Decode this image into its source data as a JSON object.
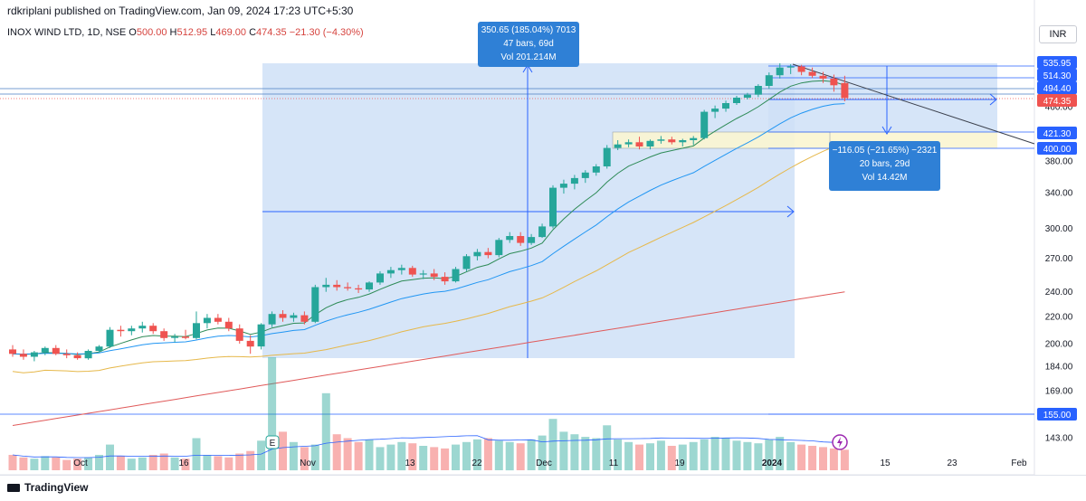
{
  "header": {
    "publisher": "rdkriplani published on TradingView.com, Jan 09, 2024 17:23 UTC+5:30"
  },
  "symbol": {
    "name": "INOX WIND LTD, 1D, NSE",
    "o_label": "O",
    "o": "500.00",
    "h_label": "H",
    "h": "512.95",
    "l_label": "L",
    "l": "469.00",
    "c_label": "C",
    "c": "474.35",
    "change": "−21.30 (−4.30%)"
  },
  "currency": "INR",
  "footer": {
    "brand": "TradingView"
  },
  "measure_up": {
    "line1": "350.65 (185.04%) 7013",
    "line2": "47 bars, 69d",
    "line3": "Vol 201.214M"
  },
  "measure_down": {
    "line1": "−116.05 (−21.65%) −2321",
    "line2": "20 bars, 29d",
    "line3": "Vol 14.42M"
  },
  "colors": {
    "up": "#26a69a",
    "down": "#ef5350",
    "accent": "#2962ff",
    "ema_fast": "#2e8b57",
    "ema_mid": "#2196f3",
    "ema_slow": "#e6b84a",
    "sma_long": "#e05a5a",
    "badge_blue": "#2962ff",
    "badge_red": "#ef5350"
  },
  "chart_data": {
    "type": "candlestick",
    "title": "INOX WIND LTD, 1D, NSE",
    "x_ticks": [
      "Oct",
      "16",
      "Nov",
      "13",
      "22",
      "Dec",
      "11",
      "19",
      "2024",
      "15",
      "23",
      "Feb"
    ],
    "y_ticks": [
      143,
      155,
      169,
      184,
      200,
      220,
      240,
      270,
      300,
      340,
      380,
      400,
      460
    ],
    "y_scale": "log",
    "y_range": [
      131,
      600
    ],
    "price_labels": [
      {
        "text": "535.95",
        "style": "blue"
      },
      {
        "text": "514.30",
        "style": "blue"
      },
      {
        "text": "494.40",
        "style": "blue"
      },
      {
        "text": "474.35",
        "style": "red"
      },
      {
        "text": "421.30",
        "style": "blue"
      },
      {
        "text": "400.00",
        "style": "blue"
      },
      {
        "text": "155.00",
        "style": "blue"
      }
    ],
    "candles": [
      {
        "d": "2023-09-25",
        "o": 196,
        "h": 199,
        "l": 191,
        "c": 193
      },
      {
        "d": "2023-09-26",
        "o": 193,
        "h": 196,
        "l": 189,
        "c": 191
      },
      {
        "d": "2023-09-27",
        "o": 191,
        "h": 195,
        "l": 188,
        "c": 194
      },
      {
        "d": "2023-09-28",
        "o": 194,
        "h": 198,
        "l": 192,
        "c": 197
      },
      {
        "d": "2023-09-29",
        "o": 197,
        "h": 199,
        "l": 192,
        "c": 193
      },
      {
        "d": "2023-10-03",
        "o": 193,
        "h": 196,
        "l": 190,
        "c": 192
      },
      {
        "d": "2023-10-04",
        "o": 192,
        "h": 194,
        "l": 189,
        "c": 190
      },
      {
        "d": "2023-10-05",
        "o": 190,
        "h": 196,
        "l": 189,
        "c": 195
      },
      {
        "d": "2023-10-06",
        "o": 195,
        "h": 199,
        "l": 194,
        "c": 198
      },
      {
        "d": "2023-10-09",
        "o": 198,
        "h": 212,
        "l": 197,
        "c": 210
      },
      {
        "d": "2023-10-10",
        "o": 210,
        "h": 213,
        "l": 205,
        "c": 209
      },
      {
        "d": "2023-10-11",
        "o": 209,
        "h": 213,
        "l": 206,
        "c": 211
      },
      {
        "d": "2023-10-12",
        "o": 211,
        "h": 216,
        "l": 208,
        "c": 213
      },
      {
        "d": "2023-10-13",
        "o": 213,
        "h": 215,
        "l": 207,
        "c": 209
      },
      {
        "d": "2023-10-16",
        "o": 209,
        "h": 211,
        "l": 202,
        "c": 204
      },
      {
        "d": "2023-10-17",
        "o": 204,
        "h": 207,
        "l": 201,
        "c": 205
      },
      {
        "d": "2023-10-18",
        "o": 205,
        "h": 210,
        "l": 203,
        "c": 204
      },
      {
        "d": "2023-10-19",
        "o": 204,
        "h": 224,
        "l": 203,
        "c": 215
      },
      {
        "d": "2023-10-20",
        "o": 215,
        "h": 222,
        "l": 211,
        "c": 219
      },
      {
        "d": "2023-10-23",
        "o": 219,
        "h": 222,
        "l": 214,
        "c": 216
      },
      {
        "d": "2023-10-25",
        "o": 216,
        "h": 219,
        "l": 209,
        "c": 211
      },
      {
        "d": "2023-10-26",
        "o": 211,
        "h": 214,
        "l": 200,
        "c": 202
      },
      {
        "d": "2023-10-27",
        "o": 202,
        "h": 206,
        "l": 193,
        "c": 198
      },
      {
        "d": "2023-10-30",
        "o": 198,
        "h": 215,
        "l": 196,
        "c": 214
      },
      {
        "d": "2023-10-31",
        "o": 214,
        "h": 224,
        "l": 212,
        "c": 222
      },
      {
        "d": "2023-11-01",
        "o": 222,
        "h": 225,
        "l": 216,
        "c": 219
      },
      {
        "d": "2023-11-02",
        "o": 219,
        "h": 223,
        "l": 216,
        "c": 221
      },
      {
        "d": "2023-11-03",
        "o": 221,
        "h": 224,
        "l": 214,
        "c": 216
      },
      {
        "d": "2023-11-06",
        "o": 216,
        "h": 246,
        "l": 215,
        "c": 244
      },
      {
        "d": "2023-11-07",
        "o": 244,
        "h": 252,
        "l": 240,
        "c": 246
      },
      {
        "d": "2023-11-08",
        "o": 246,
        "h": 250,
        "l": 241,
        "c": 244
      },
      {
        "d": "2023-11-09",
        "o": 244,
        "h": 248,
        "l": 241,
        "c": 243
      },
      {
        "d": "2023-11-10",
        "o": 243,
        "h": 246,
        "l": 239,
        "c": 242
      },
      {
        "d": "2023-11-13",
        "o": 242,
        "h": 249,
        "l": 240,
        "c": 248
      },
      {
        "d": "2023-11-15",
        "o": 248,
        "h": 258,
        "l": 246,
        "c": 256
      },
      {
        "d": "2023-11-16",
        "o": 256,
        "h": 262,
        "l": 252,
        "c": 259
      },
      {
        "d": "2023-11-17",
        "o": 259,
        "h": 264,
        "l": 255,
        "c": 261
      },
      {
        "d": "2023-11-20",
        "o": 261,
        "h": 263,
        "l": 253,
        "c": 255
      },
      {
        "d": "2023-11-21",
        "o": 255,
        "h": 259,
        "l": 251,
        "c": 256
      },
      {
        "d": "2023-11-22",
        "o": 256,
        "h": 260,
        "l": 250,
        "c": 253
      },
      {
        "d": "2023-11-23",
        "o": 253,
        "h": 257,
        "l": 246,
        "c": 249
      },
      {
        "d": "2023-11-24",
        "o": 249,
        "h": 262,
        "l": 248,
        "c": 260
      },
      {
        "d": "2023-11-28",
        "o": 260,
        "h": 274,
        "l": 258,
        "c": 272
      },
      {
        "d": "2023-11-29",
        "o": 272,
        "h": 279,
        "l": 268,
        "c": 276
      },
      {
        "d": "2023-11-30",
        "o": 276,
        "h": 280,
        "l": 270,
        "c": 273
      },
      {
        "d": "2023-12-01",
        "o": 273,
        "h": 290,
        "l": 271,
        "c": 288
      },
      {
        "d": "2023-12-04",
        "o": 288,
        "h": 296,
        "l": 285,
        "c": 292
      },
      {
        "d": "2023-12-05",
        "o": 292,
        "h": 296,
        "l": 282,
        "c": 285
      },
      {
        "d": "2023-12-06",
        "o": 285,
        "h": 294,
        "l": 283,
        "c": 291
      },
      {
        "d": "2023-12-07",
        "o": 291,
        "h": 305,
        "l": 290,
        "c": 302
      },
      {
        "d": "2023-12-08",
        "o": 302,
        "h": 349,
        "l": 300,
        "c": 346
      },
      {
        "d": "2023-12-11",
        "o": 346,
        "h": 356,
        "l": 339,
        "c": 351
      },
      {
        "d": "2023-12-12",
        "o": 351,
        "h": 362,
        "l": 344,
        "c": 358
      },
      {
        "d": "2023-12-13",
        "o": 358,
        "h": 368,
        "l": 352,
        "c": 365
      },
      {
        "d": "2023-12-14",
        "o": 365,
        "h": 376,
        "l": 361,
        "c": 373
      },
      {
        "d": "2023-12-15",
        "o": 373,
        "h": 402,
        "l": 370,
        "c": 398
      },
      {
        "d": "2023-12-18",
        "o": 398,
        "h": 409,
        "l": 395,
        "c": 403
      },
      {
        "d": "2023-12-19",
        "o": 403,
        "h": 410,
        "l": 399,
        "c": 406
      },
      {
        "d": "2023-12-20",
        "o": 406,
        "h": 414,
        "l": 396,
        "c": 400
      },
      {
        "d": "2023-12-21",
        "o": 400,
        "h": 410,
        "l": 396,
        "c": 408
      },
      {
        "d": "2023-12-22",
        "o": 408,
        "h": 415,
        "l": 404,
        "c": 410
      },
      {
        "d": "2023-12-26",
        "o": 410,
        "h": 414,
        "l": 403,
        "c": 406
      },
      {
        "d": "2023-12-27",
        "o": 406,
        "h": 411,
        "l": 400,
        "c": 409
      },
      {
        "d": "2023-12-28",
        "o": 409,
        "h": 415,
        "l": 402,
        "c": 412
      },
      {
        "d": "2023-12-29",
        "o": 412,
        "h": 455,
        "l": 410,
        "c": 452
      },
      {
        "d": "2024-01-01",
        "o": 452,
        "h": 462,
        "l": 442,
        "c": 457
      },
      {
        "d": "2024-01-02",
        "o": 457,
        "h": 470,
        "l": 452,
        "c": 466
      },
      {
        "d": "2024-01-03",
        "o": 466,
        "h": 478,
        "l": 463,
        "c": 475
      },
      {
        "d": "2024-01-04",
        "o": 475,
        "h": 483,
        "l": 472,
        "c": 480
      },
      {
        "d": "2024-01-05",
        "o": 480,
        "h": 498,
        "l": 476,
        "c": 495
      },
      {
        "d": "2024-01-08",
        "o": 495,
        "h": 519,
        "l": 490,
        "c": 514
      },
      {
        "d": "2024-01-09",
        "o": 514,
        "h": 536,
        "l": 508,
        "c": 528
      },
      {
        "d": "2024-01-10",
        "o": 528,
        "h": 534,
        "l": 516,
        "c": 530
      },
      {
        "d": "2024-01-11",
        "o": 530,
        "h": 533,
        "l": 514,
        "c": 520
      },
      {
        "d": "2024-01-12",
        "o": 520,
        "h": 528,
        "l": 509,
        "c": 513
      },
      {
        "d": "2024-01-15",
        "o": 513,
        "h": 520,
        "l": 500,
        "c": 508
      },
      {
        "d": "2024-01-16",
        "o": 508,
        "h": 515,
        "l": 485,
        "c": 496
      },
      {
        "d": "2024-01-17",
        "o": 500,
        "h": 512.95,
        "l": 469,
        "c": 474.35
      }
    ],
    "volume": [
      12,
      10,
      9,
      11,
      10,
      8,
      9,
      10,
      12,
      20,
      11,
      9,
      10,
      12,
      13,
      10,
      9,
      25,
      12,
      11,
      10,
      13,
      15,
      23,
      88,
      30,
      22,
      18,
      20,
      60,
      28,
      25,
      22,
      24,
      18,
      20,
      22,
      21,
      19,
      18,
      17,
      20,
      22,
      24,
      25,
      23,
      22,
      21,
      24,
      27,
      40,
      30,
      28,
      26,
      25,
      35,
      24,
      22,
      20,
      21,
      23,
      19,
      20,
      22,
      24,
      26,
      25,
      23,
      22,
      21,
      24,
      26,
      22,
      20,
      19,
      18,
      17,
      16
    ]
  }
}
